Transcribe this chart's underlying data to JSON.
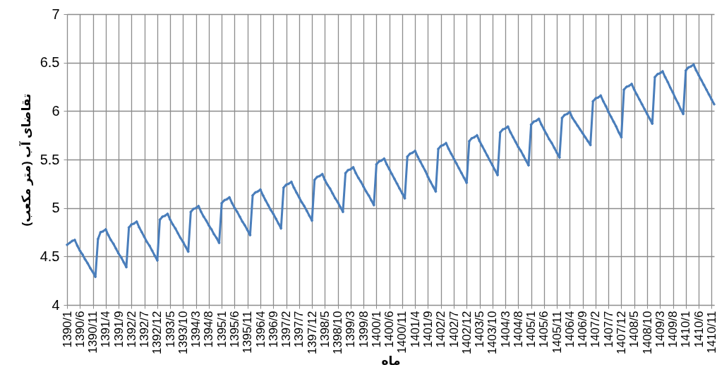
{
  "chart_data": {
    "type": "line",
    "xlabel": "ماه",
    "ylabel": "تقاضای آب (متر مکعب)",
    "categories": [
      "1390/1",
      null,
      null,
      null,
      null,
      "1390/6",
      null,
      null,
      null,
      null,
      "1390/11",
      null,
      null,
      null,
      null,
      "1391/4",
      null,
      null,
      null,
      null,
      "1391/9",
      null,
      null,
      null,
      null,
      "1392/2",
      null,
      null,
      null,
      null,
      "1392/7",
      null,
      null,
      null,
      null,
      "1392/12",
      null,
      null,
      null,
      null,
      "1393/5",
      null,
      null,
      null,
      null,
      "1393/10",
      null,
      null,
      null,
      null,
      "1394/3",
      null,
      null,
      null,
      null,
      "1394/8",
      null,
      null,
      null,
      null,
      "1395/1",
      null,
      null,
      null,
      null,
      "1395/6",
      null,
      null,
      null,
      null,
      "1395/11",
      null,
      null,
      null,
      null,
      "1396/4",
      null,
      null,
      null,
      null,
      "1396/9",
      null,
      null,
      null,
      null,
      "1397/2",
      null,
      null,
      null,
      null,
      "1397/7",
      null,
      null,
      null,
      null,
      "1397/12",
      null,
      null,
      null,
      null,
      "1398/5",
      null,
      null,
      null,
      null,
      "1398/10",
      null,
      null,
      null,
      null,
      "1399/3",
      null,
      null,
      null,
      null,
      "1399/8",
      null,
      null,
      null,
      null,
      "1400/1",
      null,
      null,
      null,
      null,
      "1400/6",
      null,
      null,
      null,
      null,
      "1400/11",
      null,
      null,
      null,
      null,
      "1401/4",
      null,
      null,
      null,
      null,
      "1401/9",
      null,
      null,
      null,
      null,
      "1402/2",
      null,
      null,
      null,
      null,
      "1402/7",
      null,
      null,
      null,
      null,
      "1402/12",
      null,
      null,
      null,
      null,
      "1403/5",
      null,
      null,
      null,
      null,
      "1403/10",
      null,
      null,
      null,
      null,
      "1404/3",
      null,
      null,
      null,
      null,
      "1404/8",
      null,
      null,
      null,
      null,
      "1405/1",
      null,
      null,
      null,
      null,
      "1405/6",
      null,
      null,
      null,
      null,
      "1405/11",
      null,
      null,
      null,
      null,
      "1406/4",
      null,
      null,
      null,
      null,
      "1406/9",
      null,
      null,
      null,
      null,
      "1407/2",
      null,
      null,
      null,
      null,
      "1407/7",
      null,
      null,
      null,
      null,
      "1407/12",
      null,
      null,
      null,
      null,
      "1408/5",
      null,
      null,
      null,
      null,
      "1408/10",
      null,
      null,
      null,
      null,
      "1409/3",
      null,
      null,
      null,
      null,
      "1409/8",
      null,
      null,
      null,
      null,
      "1410/1",
      null,
      null,
      null,
      null,
      "1410/6",
      null,
      null,
      null,
      null,
      "1410/11",
      null
    ],
    "values": [
      4.62,
      4.64,
      4.66,
      4.67,
      4.61,
      4.56,
      4.52,
      4.47,
      4.43,
      4.38,
      4.34,
      4.29,
      4.68,
      4.75,
      4.76,
      4.78,
      4.72,
      4.67,
      4.63,
      4.58,
      4.53,
      4.49,
      4.44,
      4.39,
      4.8,
      4.83,
      4.84,
      4.86,
      4.8,
      4.75,
      4.7,
      4.65,
      4.61,
      4.56,
      4.51,
      4.46,
      4.88,
      4.91,
      4.92,
      4.94,
      4.88,
      4.83,
      4.79,
      4.74,
      4.69,
      4.65,
      4.6,
      4.55,
      4.96,
      4.99,
      5.0,
      5.02,
      4.96,
      4.91,
      4.87,
      4.82,
      4.78,
      4.73,
      4.69,
      4.64,
      5.05,
      5.08,
      5.09,
      5.11,
      5.05,
      5.0,
      4.96,
      4.91,
      4.86,
      4.82,
      4.77,
      4.72,
      5.13,
      5.16,
      5.17,
      5.19,
      5.13,
      5.08,
      5.03,
      4.98,
      4.94,
      4.89,
      4.84,
      4.79,
      5.21,
      5.24,
      5.25,
      5.27,
      5.21,
      5.16,
      5.11,
      5.06,
      5.02,
      4.97,
      4.92,
      4.87,
      5.29,
      5.32,
      5.33,
      5.35,
      5.29,
      5.24,
      5.2,
      5.15,
      5.1,
      5.06,
      5.01,
      4.96,
      5.36,
      5.39,
      5.4,
      5.42,
      5.36,
      5.31,
      5.27,
      5.22,
      5.17,
      5.13,
      5.08,
      5.03,
      5.45,
      5.48,
      5.49,
      5.51,
      5.45,
      5.4,
      5.35,
      5.3,
      5.25,
      5.2,
      5.15,
      5.1,
      5.53,
      5.56,
      5.57,
      5.59,
      5.53,
      5.48,
      5.43,
      5.38,
      5.32,
      5.27,
      5.22,
      5.17,
      5.61,
      5.64,
      5.65,
      5.67,
      5.61,
      5.56,
      5.51,
      5.46,
      5.41,
      5.36,
      5.31,
      5.26,
      5.69,
      5.72,
      5.73,
      5.75,
      5.69,
      5.64,
      5.59,
      5.54,
      5.49,
      5.44,
      5.39,
      5.34,
      5.78,
      5.81,
      5.82,
      5.84,
      5.78,
      5.73,
      5.68,
      5.63,
      5.59,
      5.54,
      5.49,
      5.44,
      5.86,
      5.89,
      5.9,
      5.92,
      5.86,
      5.81,
      5.76,
      5.71,
      5.67,
      5.62,
      5.57,
      5.52,
      5.93,
      5.96,
      5.97,
      5.99,
      5.93,
      5.89,
      5.85,
      5.81,
      5.77,
      5.73,
      5.69,
      5.65,
      6.1,
      6.13,
      6.14,
      6.16,
      6.1,
      6.05,
      5.99,
      5.94,
      5.89,
      5.84,
      5.78,
      5.73,
      6.22,
      6.25,
      6.26,
      6.28,
      6.22,
      6.17,
      6.12,
      6.07,
      6.02,
      5.97,
      5.92,
      5.87,
      6.35,
      6.38,
      6.39,
      6.41,
      6.35,
      6.3,
      6.24,
      6.19,
      6.13,
      6.08,
      6.02,
      5.97,
      6.42,
      6.45,
      6.46,
      6.48,
      6.42,
      6.37,
      6.32,
      6.27,
      6.22,
      6.17,
      6.12,
      6.07
    ],
    "color": "#4a7ebb",
    "ylim": [
      4,
      7
    ],
    "yticks": [
      4,
      4.5,
      5,
      5.5,
      6,
      6.5,
      7
    ],
    "grid": true,
    "marker": "cross"
  }
}
